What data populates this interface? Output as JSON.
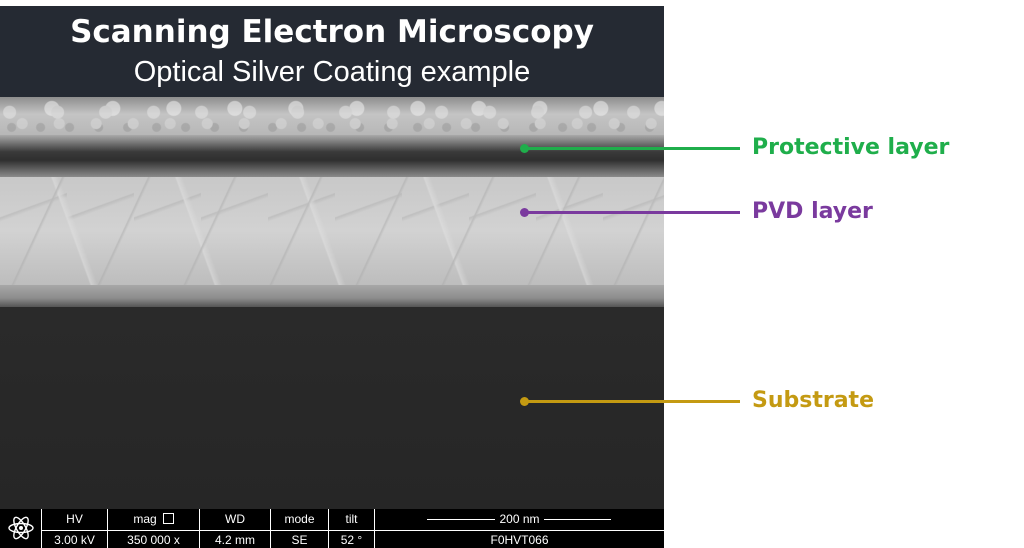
{
  "title": "Scanning Electron Microscopy",
  "subtitle": "Optical Silver Coating example",
  "colors": {
    "protective": "#1fae4b",
    "pvd": "#7a3a9e",
    "substrate": "#c49a12"
  },
  "callouts": [
    {
      "id": "protective",
      "label": "Protective layer"
    },
    {
      "id": "pvd",
      "label": "PVD layer"
    },
    {
      "id": "substrate",
      "label": "Substrate"
    }
  ],
  "info_bar": {
    "hv_label": "HV",
    "hv_value": "3.00 kV",
    "mag_label": "mag",
    "mag_value": "350 000 x",
    "wd_label": "WD",
    "wd_value": "4.2 mm",
    "mode_label": "mode",
    "mode_value": "SE",
    "tilt_label": "tilt",
    "tilt_value": "52 °",
    "scale_label": "200 nm",
    "instrument_id": "F0HVT066",
    "logo_icon": "atom-icon"
  }
}
